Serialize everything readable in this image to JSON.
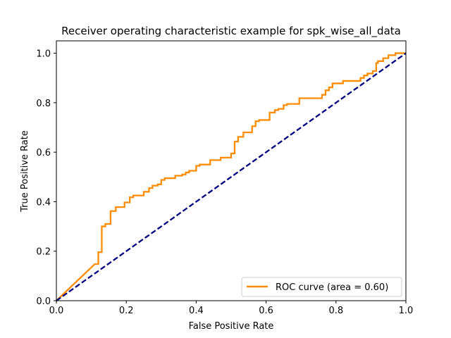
{
  "chart_data": {
    "type": "line",
    "title": "Receiver operating characteristic example for spk_wise_all_data",
    "xlabel": "False Positive Rate",
    "ylabel": "True Positive Rate",
    "xlim": [
      0.0,
      1.0
    ],
    "ylim": [
      0.0,
      1.05
    ],
    "x_ticks": [
      "0.0",
      "0.2",
      "0.4",
      "0.6",
      "0.8",
      "1.0"
    ],
    "x_tick_values": [
      0.0,
      0.2,
      0.4,
      0.6,
      0.8,
      1.0
    ],
    "y_ticks": [
      "0.0",
      "0.2",
      "0.4",
      "0.6",
      "0.8",
      "1.0"
    ],
    "y_tick_values": [
      0.0,
      0.2,
      0.4,
      0.6,
      0.8,
      1.0
    ],
    "grid": false,
    "legend_position": "lower-right",
    "series": [
      {
        "name": "ROC curve (area = 0.60)",
        "color": "#ff8c00",
        "style": "solid",
        "points": [
          [
            0.0,
            0.0
          ],
          [
            0.11,
            0.148
          ],
          [
            0.12,
            0.148
          ],
          [
            0.12,
            0.196
          ],
          [
            0.13,
            0.196
          ],
          [
            0.13,
            0.3
          ],
          [
            0.14,
            0.3
          ],
          [
            0.14,
            0.31
          ],
          [
            0.155,
            0.31
          ],
          [
            0.155,
            0.362
          ],
          [
            0.17,
            0.362
          ],
          [
            0.17,
            0.378
          ],
          [
            0.195,
            0.378
          ],
          [
            0.195,
            0.397
          ],
          [
            0.21,
            0.397
          ],
          [
            0.21,
            0.418
          ],
          [
            0.22,
            0.418
          ],
          [
            0.22,
            0.425
          ],
          [
            0.25,
            0.425
          ],
          [
            0.25,
            0.44
          ],
          [
            0.265,
            0.44
          ],
          [
            0.265,
            0.455
          ],
          [
            0.275,
            0.455
          ],
          [
            0.275,
            0.465
          ],
          [
            0.29,
            0.465
          ],
          [
            0.29,
            0.47
          ],
          [
            0.3,
            0.47
          ],
          [
            0.3,
            0.488
          ],
          [
            0.31,
            0.488
          ],
          [
            0.31,
            0.495
          ],
          [
            0.34,
            0.495
          ],
          [
            0.34,
            0.505
          ],
          [
            0.36,
            0.505
          ],
          [
            0.36,
            0.51
          ],
          [
            0.37,
            0.51
          ],
          [
            0.37,
            0.518
          ],
          [
            0.38,
            0.518
          ],
          [
            0.38,
            0.525
          ],
          [
            0.4,
            0.525
          ],
          [
            0.4,
            0.545
          ],
          [
            0.41,
            0.545
          ],
          [
            0.41,
            0.55
          ],
          [
            0.44,
            0.55
          ],
          [
            0.44,
            0.568
          ],
          [
            0.47,
            0.568
          ],
          [
            0.47,
            0.578
          ],
          [
            0.5,
            0.578
          ],
          [
            0.5,
            0.595
          ],
          [
            0.51,
            0.595
          ],
          [
            0.51,
            0.643
          ],
          [
            0.52,
            0.643
          ],
          [
            0.52,
            0.662
          ],
          [
            0.535,
            0.662
          ],
          [
            0.535,
            0.68
          ],
          [
            0.56,
            0.68
          ],
          [
            0.56,
            0.705
          ],
          [
            0.57,
            0.705
          ],
          [
            0.57,
            0.725
          ],
          [
            0.58,
            0.725
          ],
          [
            0.58,
            0.73
          ],
          [
            0.61,
            0.73
          ],
          [
            0.61,
            0.76
          ],
          [
            0.625,
            0.76
          ],
          [
            0.625,
            0.77
          ],
          [
            0.635,
            0.77
          ],
          [
            0.635,
            0.775
          ],
          [
            0.65,
            0.775
          ],
          [
            0.65,
            0.79
          ],
          [
            0.66,
            0.79
          ],
          [
            0.66,
            0.795
          ],
          [
            0.695,
            0.795
          ],
          [
            0.695,
            0.818
          ],
          [
            0.76,
            0.818
          ],
          [
            0.76,
            0.832
          ],
          [
            0.77,
            0.832
          ],
          [
            0.77,
            0.85
          ],
          [
            0.78,
            0.85
          ],
          [
            0.78,
            0.862
          ],
          [
            0.79,
            0.862
          ],
          [
            0.79,
            0.878
          ],
          [
            0.82,
            0.878
          ],
          [
            0.82,
            0.888
          ],
          [
            0.87,
            0.888
          ],
          [
            0.87,
            0.9
          ],
          [
            0.88,
            0.9
          ],
          [
            0.88,
            0.91
          ],
          [
            0.89,
            0.91
          ],
          [
            0.89,
            0.918
          ],
          [
            0.905,
            0.918
          ],
          [
            0.905,
            0.928
          ],
          [
            0.915,
            0.928
          ],
          [
            0.915,
            0.96
          ],
          [
            0.92,
            0.96
          ],
          [
            0.92,
            0.968
          ],
          [
            0.935,
            0.968
          ],
          [
            0.935,
            0.98
          ],
          [
            0.95,
            0.98
          ],
          [
            0.95,
            0.992
          ],
          [
            0.97,
            0.992
          ],
          [
            0.97,
            1.0
          ],
          [
            1.0,
            1.0
          ]
        ]
      },
      {
        "name": "",
        "color": "#000080",
        "style": "dashed",
        "points": [
          [
            0.0,
            0.0
          ],
          [
            1.0,
            1.0
          ]
        ]
      }
    ]
  }
}
